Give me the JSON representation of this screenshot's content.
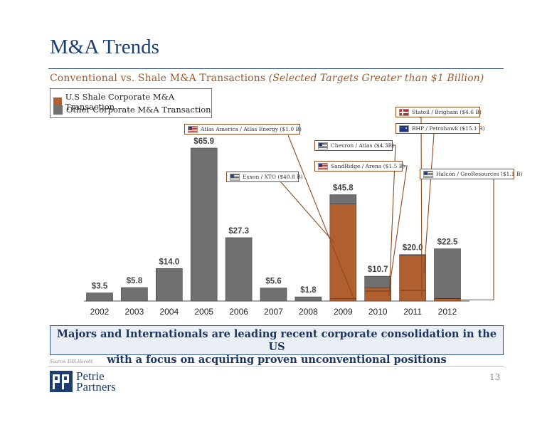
{
  "page": {
    "title": "M&A Trends",
    "subtitle_main": "Conventional vs. Shale M&A Transactions ",
    "subtitle_italic": "(Selected Targets Greater than $1 Billion)",
    "summary_line1": "Majors and Internationals are leading recent corporate consolidation in the US",
    "summary_line2": "with a focus on acquiring proven unconventional positions",
    "source": "Source: IHS Herold.",
    "page_number": "13",
    "logo_line1": "Petrie",
    "logo_line2": "Partners"
  },
  "colors": {
    "shale": "#b05f30",
    "other": "#707070",
    "title": "#1b3f6e",
    "accent": "#9a5a2e"
  },
  "callouts": [
    {
      "label": "Atlas America / Atlas Energy ($1.0 B)",
      "flag": "us-flag"
    },
    {
      "label": "Exxon / XTO ($40.8 B)",
      "flag": "us-flag"
    },
    {
      "label": "Chevron / Atlas ($4.3B)",
      "flag": "us-flag"
    },
    {
      "label": "SandRidge / Arena ($1.5 B)",
      "flag": "us-flag"
    },
    {
      "label": "Statoil / Brigham ($4.6 B)",
      "flag": "norway-flag"
    },
    {
      "label": "BHP / Petrohawk ($15.1 B)",
      "flag": "australia-flag"
    },
    {
      "label": "Halcón / GeoResources ($1.1 B)",
      "flag": "us-flag"
    }
  ],
  "chart_data": {
    "type": "bar",
    "stacked": true,
    "categories": [
      "2002",
      "2003",
      "2004",
      "2005",
      "2006",
      "2007",
      "2008",
      "2009",
      "2010",
      "2011",
      "2012"
    ],
    "totals": [
      3.5,
      5.8,
      14.0,
      65.9,
      27.3,
      5.6,
      1.8,
      45.8,
      10.7,
      20.0,
      22.5
    ],
    "total_labels": [
      "$3.5",
      "$5.8",
      "$14.0",
      "$65.9",
      "$27.3",
      "$5.6",
      "$1.8",
      "$45.8",
      "$10.7",
      "$20.0",
      "$22.5"
    ],
    "series": [
      {
        "name": "U.S Shale Corporate M&A Transaction",
        "color": "#b05f30",
        "values": [
          0,
          0,
          0,
          0,
          0,
          0,
          0,
          41.8,
          5.8,
          19.7,
          1.1
        ]
      },
      {
        "name": "Other Corporate M&A Transaction",
        "color": "#707070",
        "values": [
          3.5,
          5.8,
          14.0,
          65.9,
          27.3,
          5.6,
          1.8,
          4.0,
          4.9,
          0.3,
          21.4
        ]
      }
    ],
    "shale_segments": [
      [],
      [],
      [],
      [],
      [],
      [],
      [],
      [
        1.0,
        40.8
      ],
      [
        4.3,
        1.5
      ],
      [
        4.6,
        15.1
      ],
      [
        1.1
      ]
    ],
    "ylim": [
      0,
      70
    ],
    "grid": false,
    "legend_position": "top-left"
  }
}
